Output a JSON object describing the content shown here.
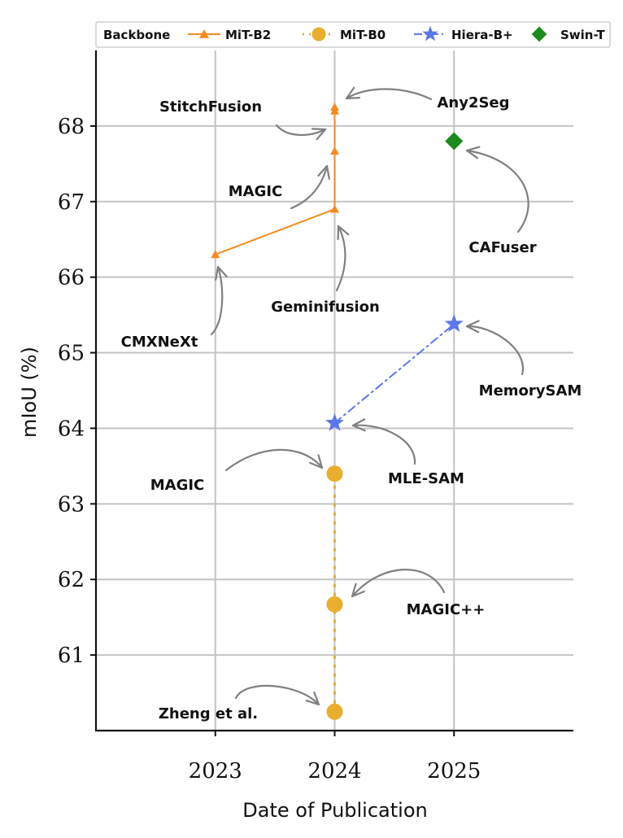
{
  "chart_data": {
    "type": "line",
    "xlabel": "Date of Publication",
    "ylabel": "mIoU (%)",
    "x_ticks": [
      "2023",
      "2024",
      "2025"
    ],
    "y_ticks": [
      "61",
      "62",
      "63",
      "64",
      "65",
      "66",
      "67",
      "68"
    ],
    "xlim": [
      2022,
      2026
    ],
    "ylim": [
      60.0,
      69.0
    ],
    "grid": true,
    "legend": {
      "title": "Backbone",
      "placement": "top",
      "entries": [
        "MiT-B2",
        "MiT-B0",
        "Hiera-B+",
        "Swin-T"
      ]
    },
    "series": [
      {
        "name": "MiT-B2",
        "color": "#f58a1f",
        "marker": "triangle",
        "line": "solid",
        "points": [
          {
            "x": 2023,
            "y": 66.3,
            "label": "CMXNeXt"
          },
          {
            "x": 2024,
            "y": 66.9,
            "label": "Geminifusion"
          },
          {
            "x": 2024,
            "y": 67.67,
            "label": "MAGIC"
          },
          {
            "x": 2024,
            "y": 68.2,
            "label": "StitchFusion"
          },
          {
            "x": 2024,
            "y": 68.25,
            "label": "Any2Seg"
          }
        ]
      },
      {
        "name": "MiT-B0",
        "color": "#e8ae2f",
        "marker": "circle",
        "line": "dotted",
        "points": [
          {
            "x": 2024,
            "y": 60.25,
            "label": "Zheng et al."
          },
          {
            "x": 2024,
            "y": 61.67,
            "label": "MAGIC++"
          },
          {
            "x": 2024,
            "y": 63.4,
            "label": "MAGIC"
          }
        ]
      },
      {
        "name": "Hiera-B+",
        "color": "#5b78ea",
        "marker": "star",
        "line": "dashdot",
        "points": [
          {
            "x": 2024,
            "y": 64.07,
            "label": "MLE-SAM"
          },
          {
            "x": 2025,
            "y": 65.38,
            "label": "MemorySAM"
          }
        ]
      },
      {
        "name": "Swin-T",
        "color": "#1c8a1c",
        "marker": "diamond",
        "line": "none",
        "points": [
          {
            "x": 2025,
            "y": 67.8,
            "label": "CAFuser"
          }
        ]
      }
    ]
  }
}
